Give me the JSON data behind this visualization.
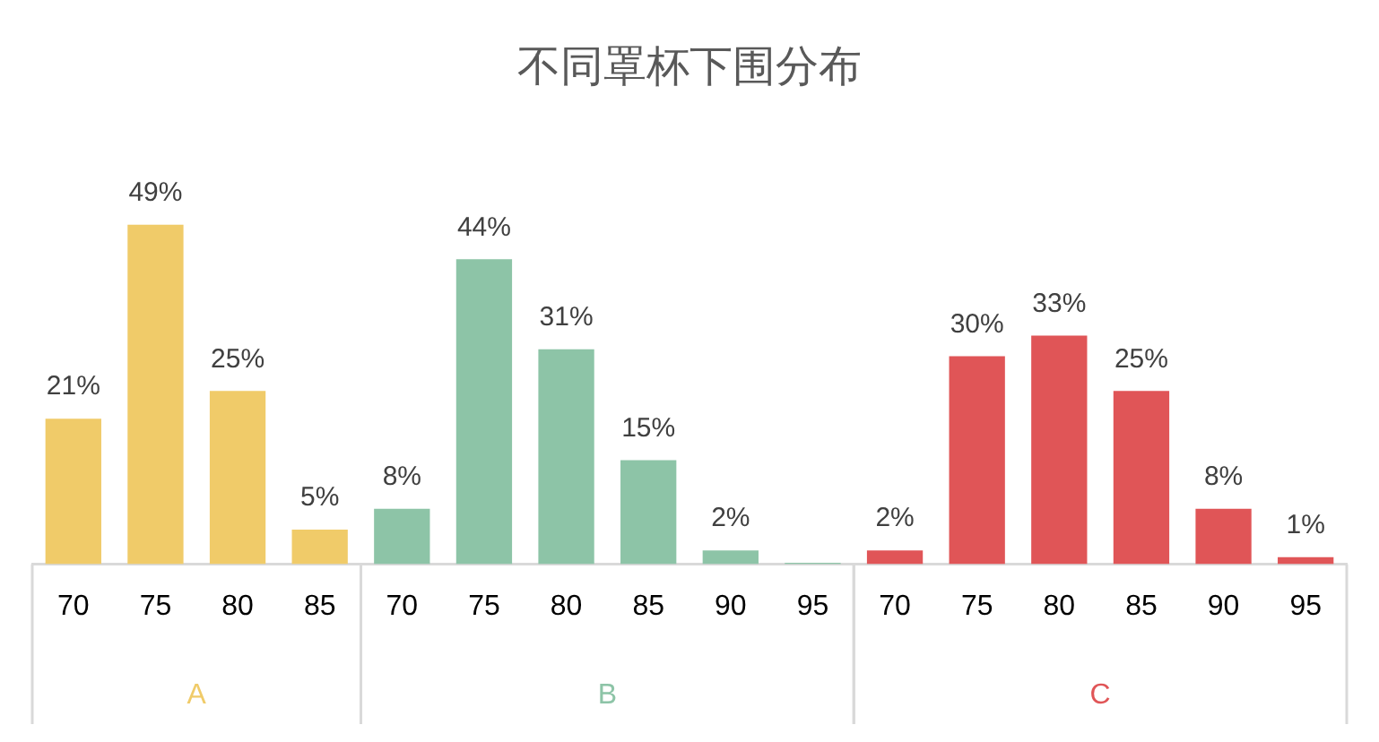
{
  "chart_data": {
    "type": "bar",
    "title": "不同罩杯下围分布",
    "categories": [
      "70",
      "75",
      "80",
      "85",
      "70",
      "75",
      "80",
      "85",
      "90",
      "95",
      "70",
      "75",
      "80",
      "85",
      "90",
      "95"
    ],
    "series": [
      {
        "name": "A",
        "color": "#f0cb69",
        "values": [
          21,
          49,
          25,
          5,
          null,
          null,
          null,
          null,
          null,
          null,
          null,
          null,
          null,
          null,
          null,
          null
        ],
        "value_labels": [
          "21%",
          "49%",
          "25%",
          "5%",
          null,
          null,
          null,
          null,
          null,
          null,
          null,
          null,
          null,
          null,
          null,
          null
        ]
      },
      {
        "name": "B",
        "color": "#8dc4a7",
        "values": [
          null,
          null,
          null,
          null,
          8,
          44,
          31,
          15,
          2,
          0.2,
          null,
          null,
          null,
          null,
          null,
          null
        ],
        "value_labels": [
          null,
          null,
          null,
          null,
          "8%",
          "44%",
          "31%",
          "15%",
          "2%",
          null,
          null,
          null,
          null,
          null,
          null,
          null
        ]
      },
      {
        "name": "C",
        "color": "#e05557",
        "values": [
          null,
          null,
          null,
          null,
          null,
          null,
          null,
          null,
          null,
          null,
          2,
          30,
          33,
          25,
          8,
          1
        ],
        "value_labels": [
          null,
          null,
          null,
          null,
          null,
          null,
          null,
          null,
          null,
          null,
          "2%",
          "30%",
          "33%",
          "25%",
          "8%",
          "1%"
        ]
      }
    ],
    "grid": false,
    "legend": false
  }
}
